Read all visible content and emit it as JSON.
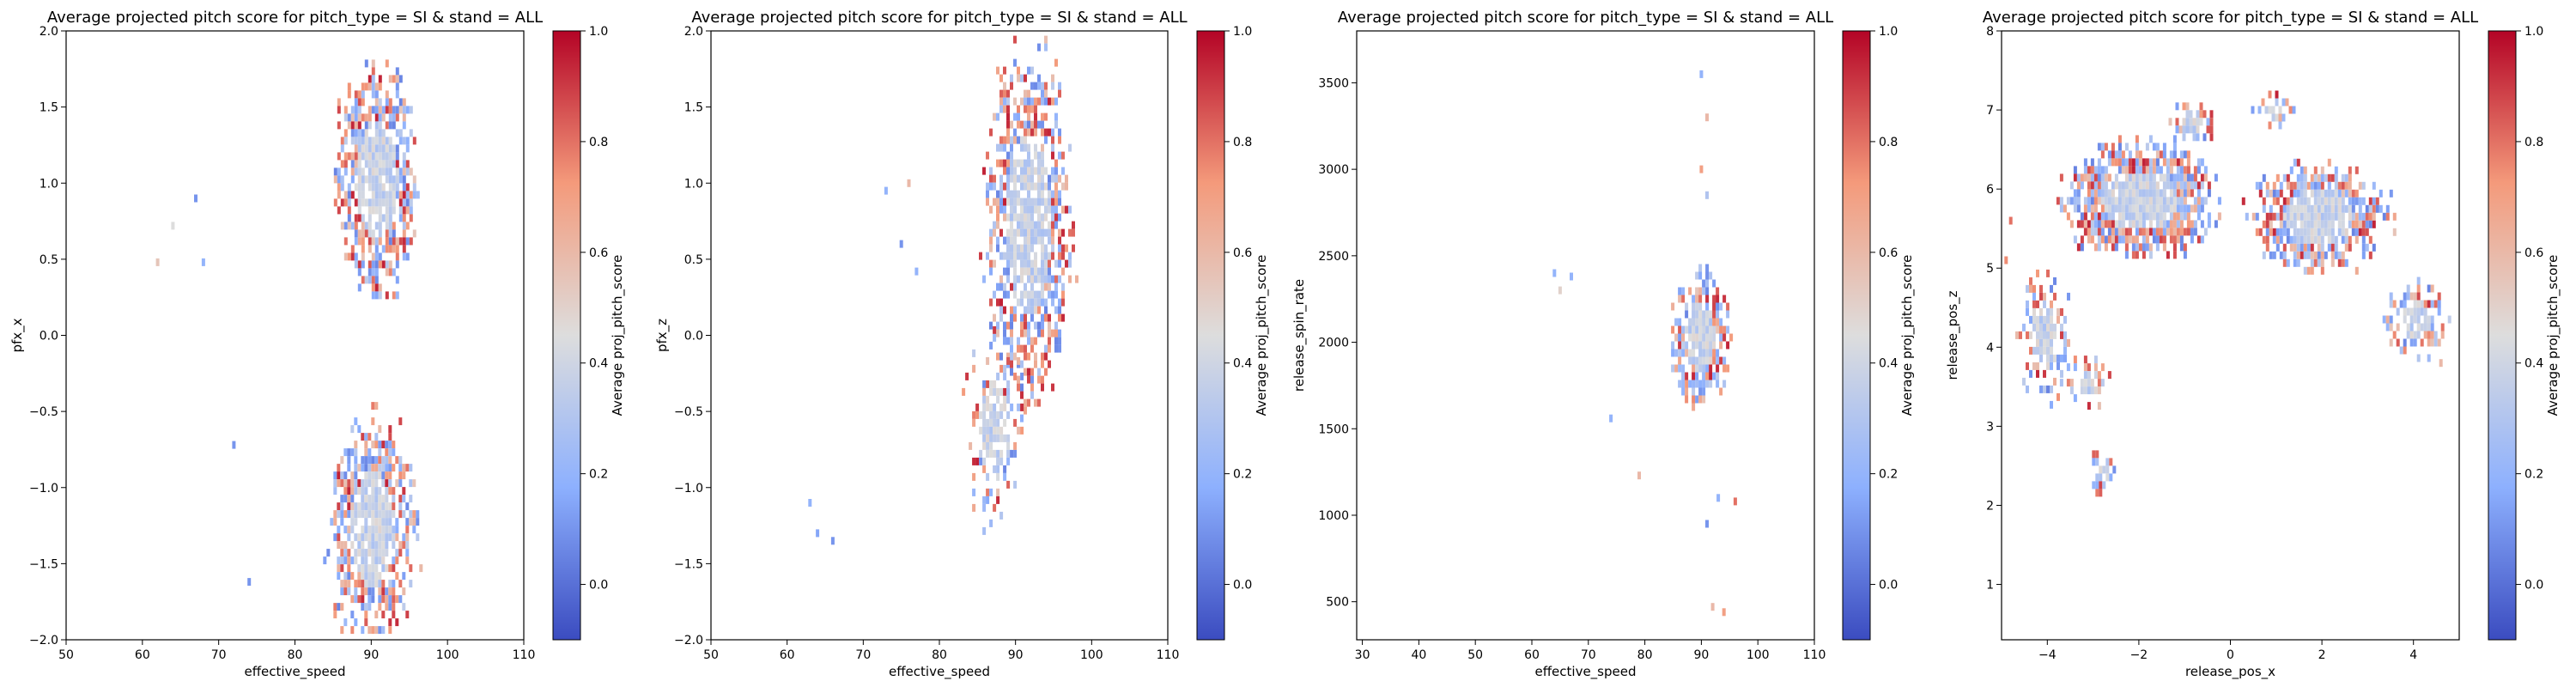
{
  "colors": {
    "colormap": "coolwarm",
    "cmap_low": "#3b4cc0",
    "cmap_mid": "#dddddd",
    "cmap_high": "#b40426",
    "axes_edge": "#000000",
    "background": "#ffffff"
  },
  "chart_data": [
    {
      "type": "heatmap",
      "title": "Average projected pitch score for pitch_type = SI & stand = ALL",
      "xlabel": "effective_speed",
      "ylabel": "pfx_x",
      "xlim": [
        50,
        110
      ],
      "ylim": [
        -2.0,
        2.0
      ],
      "x_ticks": [
        "50",
        "60",
        "70",
        "80",
        "90",
        "100",
        "110"
      ],
      "y_ticks": [
        "−2.0",
        "−1.5",
        "−1.0",
        "−0.5",
        "0.0",
        "0.5",
        "1.0",
        "1.5",
        "2.0"
      ],
      "colorbar": {
        "label": "Average proj_pitch_score",
        "range": [
          -0.1,
          1.0
        ],
        "ticks": [
          "0.0",
          "0.2",
          "0.4",
          "0.6",
          "0.8",
          "1.0"
        ]
      },
      "clusters": [
        {
          "x_center": 90.5,
          "y_center": 1.05,
          "x_spread": 4.0,
          "y_spread": 0.55,
          "density": 0.65
        },
        {
          "x_center": 90.0,
          "y_center": -1.25,
          "x_spread": 4.2,
          "y_spread": 0.55,
          "density": 0.65
        }
      ],
      "outliers": [
        {
          "x": 64,
          "y": 0.72,
          "value": 0.45
        },
        {
          "x": 67,
          "y": 0.9,
          "value": 0.1
        },
        {
          "x": 62,
          "y": 0.48,
          "value": 0.55
        },
        {
          "x": 68,
          "y": 0.48,
          "value": 0.2
        },
        {
          "x": 72,
          "y": -0.72,
          "value": 0.1
        },
        {
          "x": 74,
          "y": -1.62,
          "value": 0.1
        }
      ]
    },
    {
      "type": "heatmap",
      "title": "Average projected pitch score for pitch_type = SI & stand = ALL",
      "xlabel": "effective_speed",
      "ylabel": "pfx_z",
      "xlim": [
        50,
        110
      ],
      "ylim": [
        -2.0,
        2.0
      ],
      "x_ticks": [
        "50",
        "60",
        "70",
        "80",
        "90",
        "100",
        "110"
      ],
      "y_ticks": [
        "−2.0",
        "−1.5",
        "−1.0",
        "−0.5",
        "0.0",
        "0.5",
        "1.0",
        "1.5",
        "2.0"
      ],
      "colorbar": {
        "label": "Average proj_pitch_score",
        "range": [
          -0.1,
          1.0
        ],
        "ticks": [
          "0.0",
          "0.2",
          "0.4",
          "0.6",
          "0.8",
          "1.0"
        ]
      },
      "clusters": [
        {
          "x_center": 91.5,
          "y_center": 0.75,
          "x_spread": 4.2,
          "y_spread": 0.85,
          "density": 0.55
        },
        {
          "x_center": 87.0,
          "y_center": -0.6,
          "x_spread": 3.0,
          "y_spread": 0.45,
          "density": 0.25
        }
      ],
      "outliers": [
        {
          "x": 63,
          "y": -1.1,
          "value": 0.2
        },
        {
          "x": 64,
          "y": -1.3,
          "value": 0.15
        },
        {
          "x": 66,
          "y": -1.35,
          "value": 0.1
        },
        {
          "x": 73,
          "y": 0.95,
          "value": 0.2
        },
        {
          "x": 75,
          "y": 0.6,
          "value": 0.1
        },
        {
          "x": 77,
          "y": 0.42,
          "value": 0.2
        },
        {
          "x": 76,
          "y": 1.0,
          "value": 0.6
        }
      ]
    },
    {
      "type": "heatmap",
      "title": "Average projected pitch score for pitch_type = SI & stand = ALL",
      "xlabel": "effective_speed",
      "ylabel": "release_spin_rate",
      "xlim": [
        29,
        110
      ],
      "ylim": [
        280,
        3800
      ],
      "x_ticks_values": [
        30,
        40,
        50,
        60,
        70,
        80,
        90,
        100,
        110
      ],
      "x_ticks": [
        "30",
        "40",
        "50",
        "60",
        "70",
        "80",
        "90",
        "100",
        "110"
      ],
      "y_ticks_values": [
        500,
        1000,
        1500,
        2000,
        2500,
        3000,
        3500
      ],
      "y_ticks": [
        "500",
        "1000",
        "1500",
        "2000",
        "2500",
        "3000",
        "3500"
      ],
      "colorbar": {
        "label": "Average proj_pitch_score",
        "range": [
          -0.1,
          1.0
        ],
        "ticks": [
          "0.0",
          "0.2",
          "0.4",
          "0.6",
          "0.8",
          "1.0"
        ]
      },
      "clusters": [
        {
          "x_center": 89.5,
          "y_center": 2050,
          "x_spread": 3.8,
          "y_spread": 280,
          "density": 0.75
        }
      ],
      "outliers": [
        {
          "x": 64,
          "y": 2400,
          "value": 0.2
        },
        {
          "x": 65,
          "y": 2300,
          "value": 0.5
        },
        {
          "x": 67,
          "y": 2380,
          "value": 0.2
        },
        {
          "x": 74,
          "y": 1560,
          "value": 0.2
        },
        {
          "x": 79,
          "y": 1230,
          "value": 0.6
        },
        {
          "x": 90,
          "y": 3550,
          "value": 0.2
        },
        {
          "x": 91,
          "y": 3300,
          "value": 0.6
        },
        {
          "x": 90,
          "y": 3000,
          "value": 0.7
        },
        {
          "x": 91,
          "y": 2850,
          "value": 0.3
        },
        {
          "x": 92,
          "y": 470,
          "value": 0.6
        },
        {
          "x": 94,
          "y": 440,
          "value": 0.7
        },
        {
          "x": 93,
          "y": 1100,
          "value": 0.2
        },
        {
          "x": 96,
          "y": 1080,
          "value": 0.8
        },
        {
          "x": 91,
          "y": 950,
          "value": 0.1
        }
      ]
    },
    {
      "type": "heatmap",
      "title": "Average projected pitch score for pitch_type = SI & stand = ALL",
      "xlabel": "release_pos_x",
      "ylabel": "release_pos_z",
      "xlim": [
        -5.0,
        5.0
      ],
      "ylim": [
        0.3,
        8.0
      ],
      "x_ticks_values": [
        -4,
        -2,
        0,
        2,
        4
      ],
      "x_ticks": [
        "−4",
        "−2",
        "0",
        "2",
        "4"
      ],
      "y_ticks_values": [
        1,
        2,
        3,
        4,
        5,
        6,
        7,
        8
      ],
      "y_ticks": [
        "1",
        "2",
        "3",
        "4",
        "5",
        "6",
        "7",
        "8"
      ],
      "colorbar": {
        "label": "Average proj_pitch_score",
        "range": [
          -0.1,
          1.0
        ],
        "ticks": [
          "0.0",
          "0.2",
          "0.4",
          "0.6",
          "0.8",
          "1.0"
        ]
      },
      "clusters": [
        {
          "x_center": -2.0,
          "y_center": 5.9,
          "x_spread": 1.2,
          "y_spread": 0.55,
          "density": 0.85
        },
        {
          "x_center": 1.9,
          "y_center": 5.7,
          "x_spread": 1.1,
          "y_spread": 0.5,
          "density": 0.75
        },
        {
          "x_center": 4.0,
          "y_center": 4.4,
          "x_spread": 0.5,
          "y_spread": 0.35,
          "density": 0.5
        },
        {
          "x_center": -4.1,
          "y_center": 4.2,
          "x_spread": 0.45,
          "y_spread": 0.6,
          "density": 0.45
        },
        {
          "x_center": -3.2,
          "y_center": 3.6,
          "x_spread": 0.4,
          "y_spread": 0.25,
          "density": 0.45
        },
        {
          "x_center": -2.8,
          "y_center": 2.5,
          "x_spread": 0.2,
          "y_spread": 0.3,
          "density": 0.5
        },
        {
          "x_center": -0.9,
          "y_center": 6.9,
          "x_spread": 0.4,
          "y_spread": 0.2,
          "density": 0.4
        },
        {
          "x_center": 0.9,
          "y_center": 7.05,
          "x_spread": 0.4,
          "y_spread": 0.15,
          "density": 0.4
        }
      ],
      "outliers": [
        {
          "x": -4.8,
          "y": 5.6,
          "value": 0.8
        },
        {
          "x": -4.9,
          "y": 5.1,
          "value": 0.75
        },
        {
          "x": 4.6,
          "y": 3.8,
          "value": 0.6
        }
      ]
    }
  ]
}
